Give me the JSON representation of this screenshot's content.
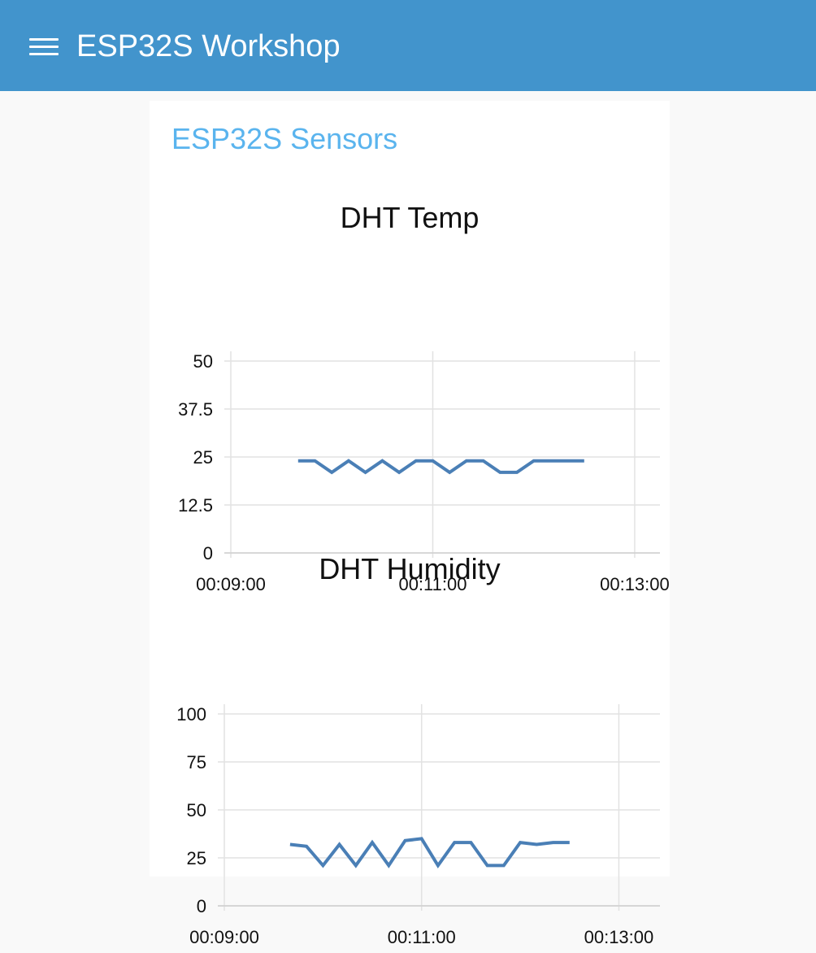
{
  "header": {
    "title": "ESP32S Workshop",
    "menu_icon": "hamburger-menu-icon",
    "background": "#4294cc"
  },
  "group": {
    "title": "ESP32S Sensors",
    "title_color": "#5ab4ee"
  },
  "chart_data": [
    {
      "type": "line",
      "title": "DHT Temp",
      "xlabel": "",
      "ylabel": "",
      "x_ticks": [
        "00:09:00",
        "00:11:00",
        "00:13:00"
      ],
      "x_range": [
        "00:09:00",
        "00:13:15"
      ],
      "y_ticks": [
        "0",
        "12.5",
        "25",
        "37.5",
        "50"
      ],
      "ylim": [
        0,
        50
      ],
      "grid": true,
      "series": [
        {
          "color": "#4a7fb6",
          "x": [
            "00:09:40",
            "00:09:50",
            "00:10:00",
            "00:10:10",
            "00:10:20",
            "00:10:30",
            "00:10:40",
            "00:10:50",
            "00:11:00",
            "00:11:10",
            "00:11:20",
            "00:11:30",
            "00:11:40",
            "00:11:50",
            "00:12:00",
            "00:12:10",
            "00:12:20",
            "00:12:30"
          ],
          "y": [
            24,
            24,
            21,
            24,
            21,
            24,
            21,
            24,
            24,
            21,
            24,
            24,
            21,
            21,
            24,
            24,
            24,
            24
          ]
        }
      ]
    },
    {
      "type": "line",
      "title": "DHT Humidity",
      "xlabel": "",
      "ylabel": "",
      "x_ticks": [
        "00:09:00",
        "00:11:00",
        "00:13:00"
      ],
      "x_range": [
        "00:09:00",
        "00:13:25"
      ],
      "y_ticks": [
        "0",
        "25",
        "50",
        "75",
        "100"
      ],
      "ylim": [
        0,
        100
      ],
      "grid": true,
      "series": [
        {
          "color": "#4a7fb6",
          "x": [
            "00:09:40",
            "00:09:50",
            "00:10:00",
            "00:10:10",
            "00:10:20",
            "00:10:30",
            "00:10:40",
            "00:10:50",
            "00:11:00",
            "00:11:10",
            "00:11:20",
            "00:11:30",
            "00:11:40",
            "00:11:50",
            "00:12:00",
            "00:12:10",
            "00:12:20",
            "00:12:30"
          ],
          "y": [
            32,
            31,
            21,
            32,
            21,
            33,
            21,
            34,
            35,
            21,
            33,
            33,
            21,
            21,
            33,
            32,
            33,
            33
          ]
        }
      ]
    }
  ]
}
